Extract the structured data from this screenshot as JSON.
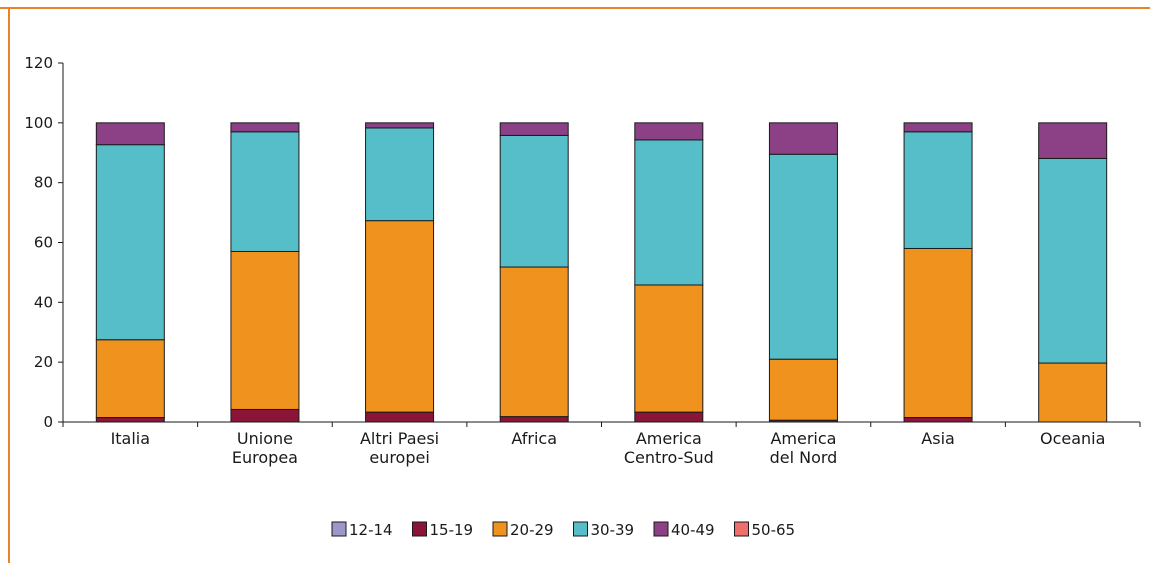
{
  "chart_data": {
    "type": "bar",
    "stacked": true,
    "categories": [
      [
        "Italia"
      ],
      [
        "Unione",
        "Europea"
      ],
      [
        "Altri Paesi",
        "europei"
      ],
      [
        "Africa"
      ],
      [
        "America",
        "Centro-Sud"
      ],
      [
        "America",
        "del Nord"
      ],
      [
        "Asia"
      ],
      [
        "Oceania"
      ]
    ],
    "series": [
      {
        "name": "12-14",
        "color": "#9b97c9",
        "values": [
          0,
          0,
          0,
          0,
          0,
          0,
          0,
          0
        ]
      },
      {
        "name": "15-19",
        "color": "#8a1538",
        "values": [
          1.5,
          4.2,
          3.3,
          1.8,
          3.3,
          0.6,
          1.5,
          0
        ]
      },
      {
        "name": "20-29",
        "color": "#f0921e",
        "values": [
          26,
          52.8,
          64,
          50,
          42.5,
          20.4,
          56.5,
          19.7
        ]
      },
      {
        "name": "30-39",
        "color": "#56bec8",
        "values": [
          65.2,
          40,
          31,
          44,
          48.5,
          68.5,
          39,
          68.4
        ]
      },
      {
        "name": "40-49",
        "color": "#8c4187",
        "values": [
          7.3,
          3,
          1.7,
          4.2,
          5.7,
          10.5,
          3,
          11.9
        ]
      },
      {
        "name": "50-65",
        "color": "#ef6f6c",
        "values": [
          0,
          0,
          0,
          0,
          0,
          0,
          0,
          0
        ]
      }
    ],
    "yticks": [
      0,
      20,
      40,
      60,
      80,
      100,
      120
    ],
    "ylim": [
      0,
      120
    ],
    "legend_position": "bottom",
    "frame_color": "#e8832a"
  }
}
